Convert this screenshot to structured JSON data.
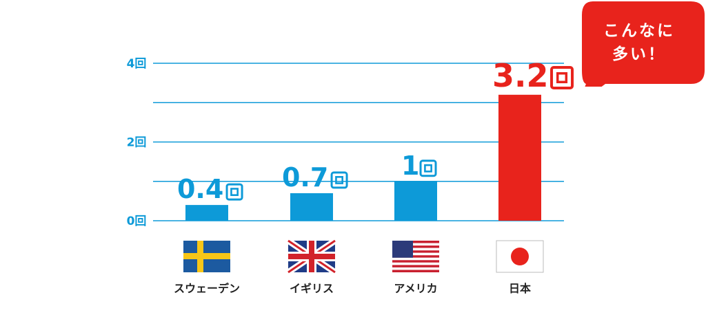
{
  "chart_data": {
    "type": "bar",
    "categories": [
      "スウェーデン",
      "イギリス",
      "アメリカ",
      "日本"
    ],
    "values": [
      0.4,
      0.7,
      1,
      3.2
    ],
    "value_labels": [
      "0.4",
      "0.7",
      "1",
      "3.2"
    ],
    "unit": "回",
    "ylim": [
      0,
      4
    ],
    "y_ticks": [
      0,
      2,
      4
    ],
    "y_tick_labels": [
      "0回",
      "2回",
      "4回"
    ],
    "grid": true,
    "colors": {
      "bar": "#0d9ad8",
      "highlight_bar": "#e8231c",
      "grid": "#0d9ad8",
      "axis_text": "#0d9ad8"
    },
    "highlight_index": 3,
    "flags": [
      "sweden-flag",
      "uk-flag",
      "usa-flag",
      "japan-flag"
    ]
  },
  "callout": {
    "line1": "こんなに",
    "line2": "多い！",
    "color": "#e8231c"
  }
}
